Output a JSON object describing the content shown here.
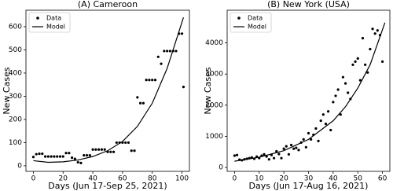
{
  "chart_data": [
    {
      "type": "scatter",
      "title": "(A) Cameroon",
      "xlabel": "Days (Jun 17-Sep 25, 2021)",
      "ylabel": "New Cases",
      "xlim": [
        -5,
        105
      ],
      "ylim": [
        -24,
        671
      ],
      "xticks": [
        0,
        20,
        40,
        60,
        80,
        100
      ],
      "yticks": [
        0,
        100,
        200,
        300,
        400,
        500,
        600
      ],
      "legend": "upper left",
      "series": [
        {
          "name": "Data",
          "color": "#000000",
          "mode": "markers",
          "x": [
            0,
            2,
            4,
            6,
            8,
            10,
            12,
            14,
            16,
            18,
            20,
            22,
            24,
            26,
            28,
            30,
            32,
            34,
            36,
            38,
            40,
            42,
            44,
            46,
            48,
            50,
            52,
            54,
            56,
            58,
            60,
            62,
            64,
            66,
            68,
            70,
            72,
            74,
            76,
            78,
            80,
            82,
            84,
            86,
            88,
            90,
            92,
            94,
            96,
            98,
            100,
            101
          ],
          "values": [
            38,
            50,
            52,
            52,
            40,
            40,
            40,
            40,
            40,
            40,
            40,
            55,
            55,
            35,
            30,
            15,
            12,
            45,
            45,
            45,
            70,
            70,
            70,
            70,
            70,
            60,
            60,
            60,
            100,
            100,
            100,
            100,
            100,
            65,
            65,
            295,
            270,
            270,
            370,
            370,
            370,
            370,
            470,
            440,
            495,
            495,
            495,
            495,
            495,
            570,
            570,
            340
          ]
        },
        {
          "name": "Model",
          "color": "#000000",
          "mode": "line",
          "x": [
            0,
            10,
            20,
            30,
            40,
            50,
            60,
            70,
            80,
            90,
            101
          ],
          "values": [
            22,
            15,
            17,
            25,
            40,
            65,
            105,
            170,
            270,
            420,
            640
          ]
        }
      ]
    },
    {
      "type": "scatter",
      "title": "(B) New York (USA)",
      "xlabel": "Days (Jun 17-Aug 16, 2021)",
      "ylabel": "New Cases",
      "xlim": [
        -3,
        63
      ],
      "ylim": [
        -125,
        5050
      ],
      "xticks": [
        0,
        10,
        20,
        30,
        40,
        50,
        60
      ],
      "yticks": [
        0,
        1000,
        2000,
        3000,
        4000
      ],
      "legend": "upper left",
      "series": [
        {
          "name": "Data",
          "color": "#000000",
          "mode": "markers",
          "x": [
            0,
            1,
            2,
            3,
            4,
            5,
            6,
            7,
            8,
            9,
            10,
            11,
            12,
            13,
            14,
            15,
            16,
            17,
            18,
            19,
            20,
            21,
            22,
            23,
            24,
            25,
            26,
            27,
            28,
            29,
            30,
            31,
            32,
            33,
            34,
            35,
            36,
            37,
            38,
            39,
            40,
            41,
            42,
            43,
            44,
            45,
            46,
            47,
            48,
            49,
            50,
            51,
            52,
            53,
            54,
            55,
            56,
            57,
            58,
            59,
            60
          ],
          "values": [
            380,
            400,
            250,
            230,
            260,
            280,
            300,
            320,
            280,
            350,
            300,
            380,
            420,
            350,
            260,
            400,
            300,
            520,
            430,
            300,
            600,
            680,
            420,
            720,
            600,
            630,
            560,
            800,
            900,
            650,
            1100,
            900,
            1050,
            1250,
            850,
            1500,
            1700,
            1400,
            1800,
            1200,
            2100,
            2300,
            2500,
            1700,
            2900,
            2700,
            2400,
            2200,
            3300,
            3400,
            3500,
            2800,
            4150,
            3300,
            3050,
            3800,
            4450,
            4300,
            4400,
            4250,
            3400
          ]
        },
        {
          "name": "Model",
          "color": "#000000",
          "mode": "line",
          "x": [
            0,
            10,
            20,
            30,
            40,
            45,
            50,
            55,
            61
          ],
          "values": [
            200,
            330,
            540,
            900,
            1500,
            1950,
            2550,
            3300,
            4650
          ]
        }
      ]
    }
  ]
}
